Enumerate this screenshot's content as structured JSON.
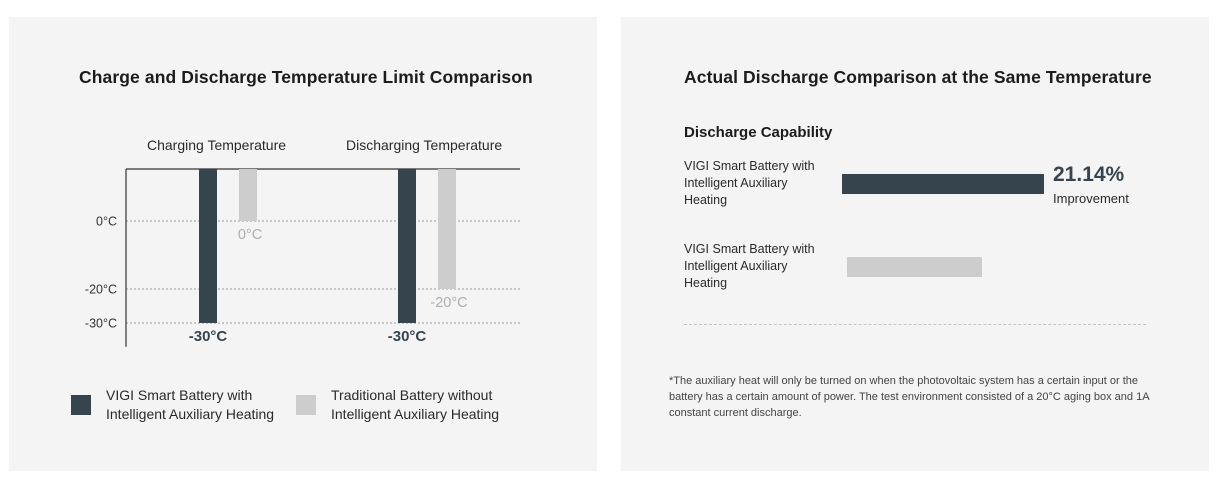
{
  "colors": {
    "panel_bg": "#f4f4f4",
    "vigi": "#36444e",
    "traditional": "#cdcdcd",
    "traditional_label": "#aeaeae",
    "axis": "#333333",
    "grid": "#9a9a9a"
  },
  "left": {
    "title": "Charge and Discharge Temperature Limit Comparison",
    "legend": [
      {
        "label": "VIGI Smart Battery with Intelligent Auxiliary Heating",
        "color": "#36444e"
      },
      {
        "label": "Traditional Battery without Intelligent Auxiliary Heating",
        "color": "#cdcdcd"
      }
    ]
  },
  "right": {
    "title": "Actual Discharge Comparison at the Same Temperature",
    "heading": "Discharge Capability",
    "rows": [
      {
        "label": "VIGI Smart Battery with Intelligent Auxiliary Heating",
        "relative": 1.0
      },
      {
        "label": "VIGI Smart Battery with Intelligent Auxiliary Heating",
        "relative": 0.67
      }
    ],
    "improvement_value": "21.14%",
    "improvement_label": "Improvement",
    "footnote": "*The auxiliary heat will only be turned on when the photovoltaic system has a certain input or the battery has a certain amount of power. The test environment consisted of a 20°C aging box and 1A constant current discharge."
  },
  "chart_data": [
    {
      "type": "bar",
      "title": "Charge and Discharge Temperature Limit Comparison",
      "categories": [
        "Charging Temperature",
        "Discharging Temperature"
      ],
      "series": [
        {
          "name": "VIGI Smart Battery with Intelligent Auxiliary Heating",
          "values": [
            -30,
            -30
          ],
          "labels": [
            "-30°C",
            "-30°C"
          ]
        },
        {
          "name": "Traditional Battery without Intelligent Auxiliary Heating",
          "values": [
            0,
            -20
          ],
          "labels": [
            "0°C",
            "-20°C"
          ]
        }
      ],
      "y_ticks": [
        0,
        -20,
        -30
      ],
      "y_tick_labels": [
        "0°C",
        "-20°C",
        "-30°C"
      ],
      "ylim": [
        -37,
        15
      ],
      "grid": true,
      "legend": "bottom"
    },
    {
      "type": "bar",
      "orientation": "horizontal",
      "title": "Actual Discharge Comparison at the Same Temperature",
      "categories": [
        "VIGI Smart Battery with Intelligent Auxiliary Heating",
        "VIGI Smart Battery with Intelligent Auxiliary Heating"
      ],
      "values": [
        1.0,
        0.67
      ],
      "annotation": "21.14% Improvement"
    }
  ]
}
